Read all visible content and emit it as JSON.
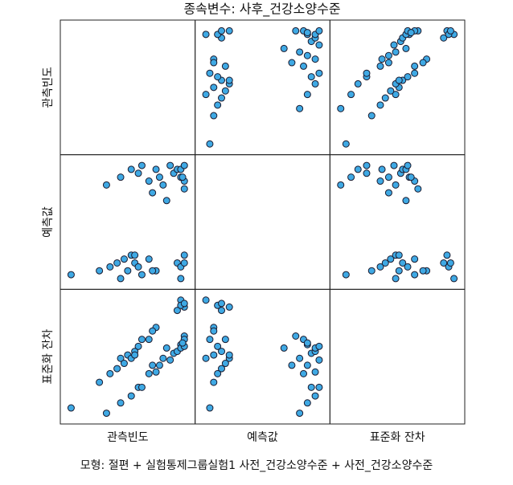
{
  "chart_data": {
    "type": "scatter_matrix",
    "title": "종속변수: 사후_건강소양수준",
    "footnote": "모형: 절편 + 실험통제그룹실험1 사전_건강소양수준 + 사전_건강소양수준",
    "color": "#3fa9e4",
    "variables": [
      {
        "name": "관측빈도",
        "values": [
          1.6,
          2.4,
          2.7,
          2.9,
          3.0,
          3.1,
          3.2,
          3.3,
          3.4,
          3.5,
          3.6,
          3.4,
          3.8,
          4.0,
          4.6,
          4.7,
          4.8,
          4.7,
          4.8,
          3.9,
          2.6,
          3.0,
          3.3,
          3.5,
          3.6,
          3.8,
          3.9,
          4.0,
          4.1,
          4.2,
          4.3,
          4.4,
          4.5,
          4.6,
          4.7,
          4.8,
          4.8,
          4.7,
          4.8,
          4.75
        ]
      },
      {
        "name": "예측값",
        "values": [
          3.05,
          3.1,
          3.15,
          3.2,
          3.0,
          3.25,
          3.1,
          3.3,
          3.2,
          3.15,
          3.05,
          3.3,
          3.25,
          3.1,
          3.2,
          3.0,
          3.3,
          3.15,
          3.2,
          3.1,
          4.2,
          4.3,
          4.4,
          4.35,
          4.45,
          4.25,
          4.1,
          4.4,
          4.3,
          4.2,
          4.0,
          4.45,
          4.35,
          4.4,
          4.3,
          4.15,
          4.25,
          4.4,
          4.45,
          4.3
        ]
      },
      {
        "name": "표준화 잔차",
        "values": [
          -2.07,
          -1.0,
          -0.64,
          -0.43,
          0,
          -0.21,
          0.14,
          0,
          0.29,
          0.5,
          0.79,
          0.14,
          0.79,
          1.29,
          2.0,
          2.43,
          2.14,
          2.21,
          2.29,
          1.14,
          -2.29,
          -1.86,
          -1.57,
          -1.21,
          -1.21,
          -0.64,
          -0.29,
          -0.57,
          -0.29,
          0,
          0.43,
          -0.07,
          0.21,
          0.29,
          0.57,
          0.93,
          0.79,
          0.43,
          0.5,
          0.64
        ]
      }
    ]
  }
}
